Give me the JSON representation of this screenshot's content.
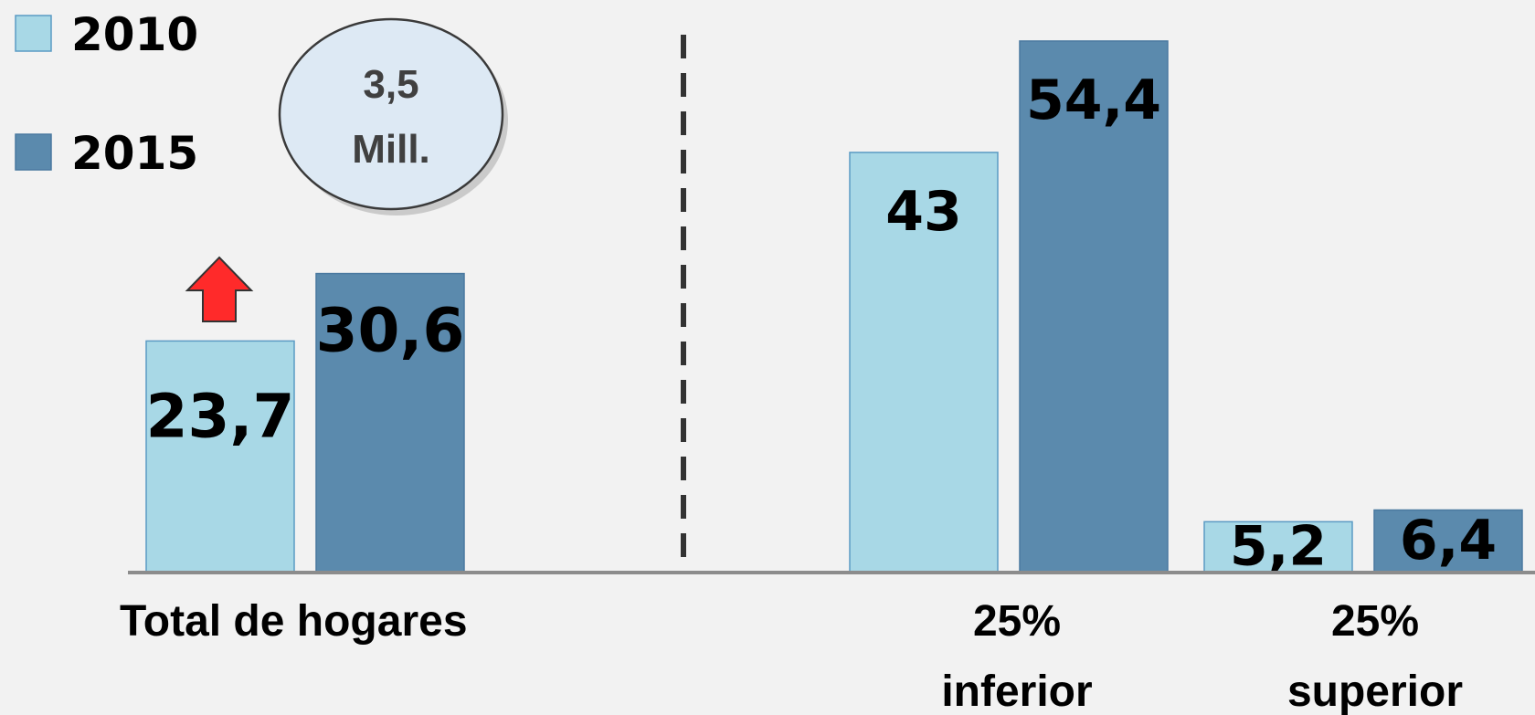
{
  "chart_data": {
    "type": "bar",
    "categories": [
      "Total de hogares",
      "25% inferior",
      "25% superior"
    ],
    "category_lines": [
      [
        "Total de hogares"
      ],
      [
        "25%",
        "inferior"
      ],
      [
        "25%",
        "superior"
      ]
    ],
    "series": [
      {
        "name": "2010",
        "values": [
          23.7,
          43,
          5.2
        ],
        "labels": [
          "23,7",
          "43",
          "5,2"
        ],
        "color": "#a8d8e6"
      },
      {
        "name": "2015",
        "values": [
          30.6,
          54.4,
          6.4
        ],
        "labels": [
          "30,6",
          "54,4",
          "6,4"
        ],
        "color": "#5b8aad"
      }
    ],
    "ylim": [
      0,
      58
    ],
    "grid": false,
    "legend_position": "top-left",
    "annotation": {
      "lines": [
        "3,5",
        "Mill."
      ],
      "arrow": "up"
    },
    "divider": "dashed"
  },
  "colors": {
    "background": "#f2f2f2",
    "bar_2010": "#a8d8e6",
    "bar_2015": "#5b8aad",
    "arrow": "#ff2a2a",
    "bubble": "#dde9f4"
  }
}
